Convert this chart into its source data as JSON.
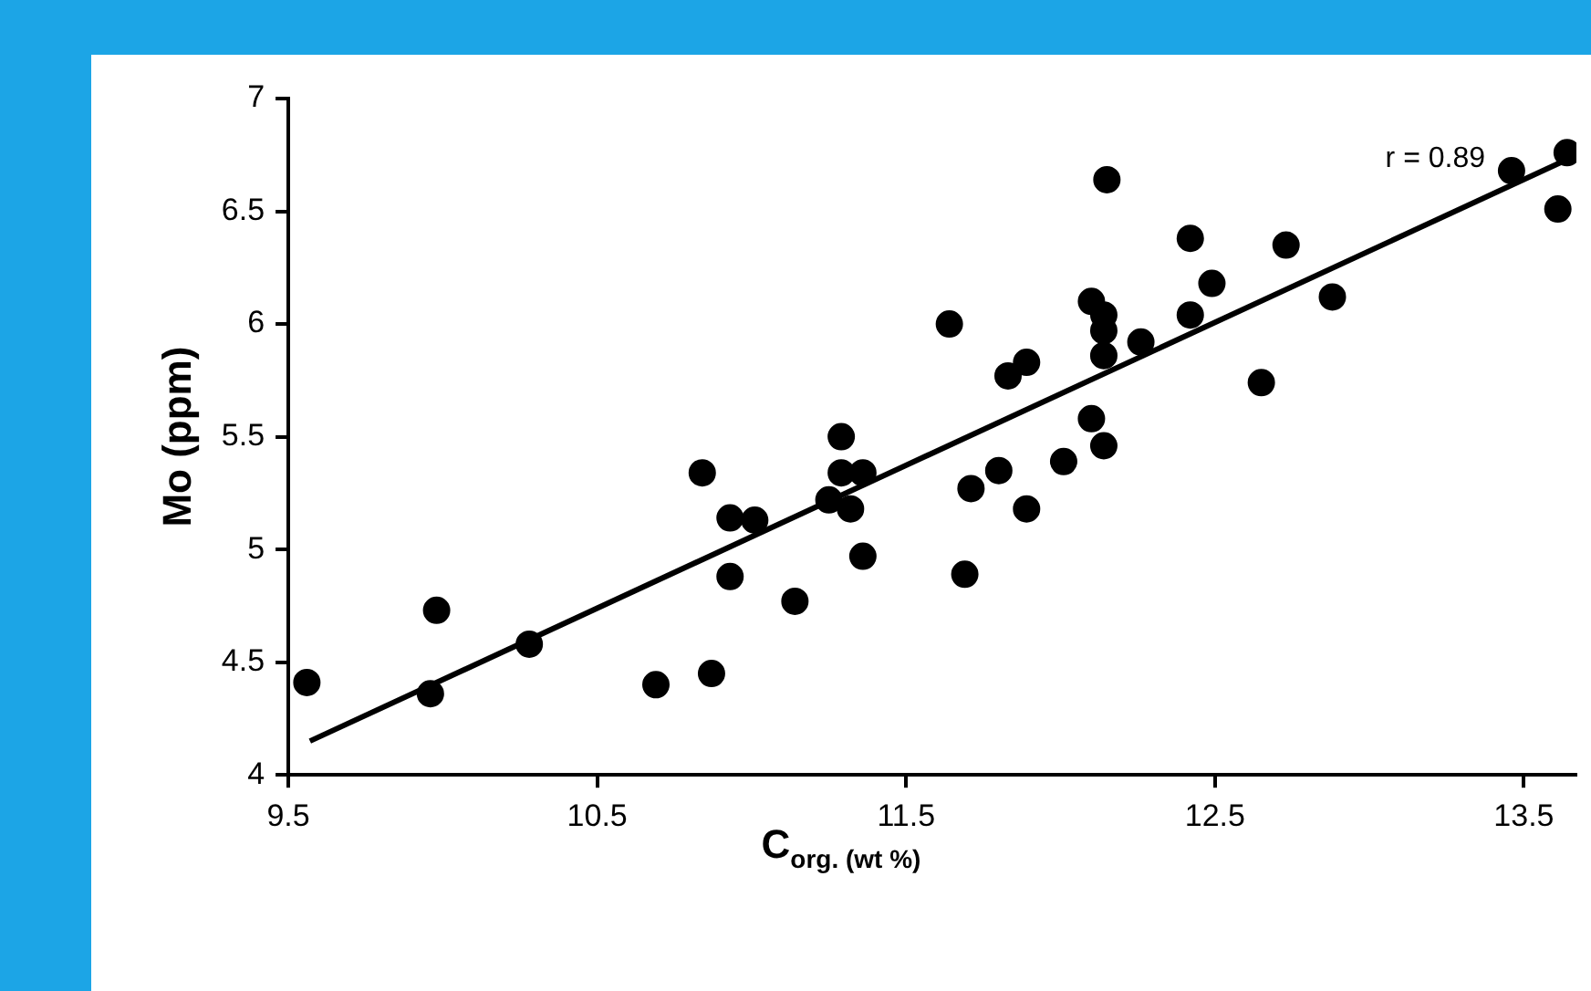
{
  "chart_data": {
    "type": "scatter",
    "xlabel": "C$_{org. (wt %)}$",
    "ylabel": "Mo (ppm)",
    "xlim": [
      9.5,
      13.67
    ],
    "xticks": [
      9.5,
      10.5,
      11.5,
      12.5,
      13.5
    ],
    "ylim": [
      4,
      7
    ],
    "yticks": [
      4,
      4.5,
      5,
      5.5,
      6,
      6.5,
      7
    ],
    "marker": "circle",
    "legend": false,
    "annotations": [
      "r = 0.89"
    ],
    "series": [
      {
        "color": "#000000",
        "x": [
          9.56,
          9.96,
          9.98,
          10.28,
          10.69,
          10.87,
          10.84,
          10.93,
          11.01,
          10.93,
          11.14,
          11.25,
          11.29,
          11.29,
          11.32,
          11.36,
          11.36,
          11.64,
          11.69,
          11.71,
          11.8,
          11.83,
          11.89,
          11.89,
          12.01,
          12.1,
          12.1,
          12.14,
          12.14,
          12.14,
          12.14,
          12.15,
          12.26,
          12.42,
          12.42,
          12.49,
          12.65,
          12.73,
          12.88,
          13.46,
          13.61,
          13.64
        ],
        "values": [
          4.41,
          4.36,
          4.73,
          4.58,
          4.4,
          4.45,
          5.34,
          5.14,
          5.13,
          4.88,
          4.77,
          5.22,
          5.5,
          5.34,
          5.18,
          5.34,
          4.97,
          6.0,
          4.89,
          5.27,
          5.35,
          5.77,
          5.83,
          5.18,
          5.39,
          6.1,
          5.58,
          6.04,
          5.97,
          5.86,
          5.46,
          6.64,
          5.92,
          6.38,
          6.04,
          6.18,
          5.74,
          6.35,
          6.12,
          6.68,
          6.51,
          6.76
        ]
      },
      {
        "type": "line",
        "color": "#000000",
        "marker": "none",
        "line_style": "solid",
        "x": [
          9.57,
          13.64
        ],
        "values": [
          4.15,
          6.73
        ]
      }
    ]
  }
}
